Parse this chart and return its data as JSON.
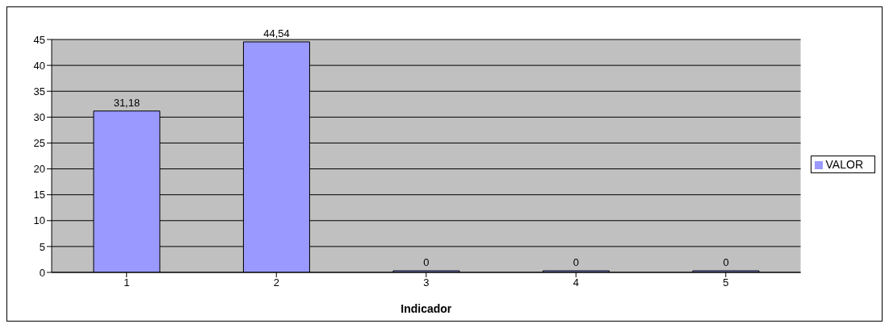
{
  "chart_data": {
    "type": "bar",
    "xlabel": "Indicador",
    "categories": [
      "1",
      "2",
      "3",
      "4",
      "5"
    ],
    "series": [
      {
        "name": "VALOR",
        "color": "#9999ff",
        "values": [
          31.18,
          44.54,
          0,
          0,
          0
        ],
        "value_labels": [
          "31,18",
          "44,54",
          "0",
          "0",
          "0"
        ]
      }
    ],
    "ylim": [
      0,
      45
    ],
    "yticks": [
      0,
      5,
      10,
      15,
      20,
      25,
      30,
      35,
      40,
      45
    ],
    "grid": "y",
    "legend": "right"
  }
}
